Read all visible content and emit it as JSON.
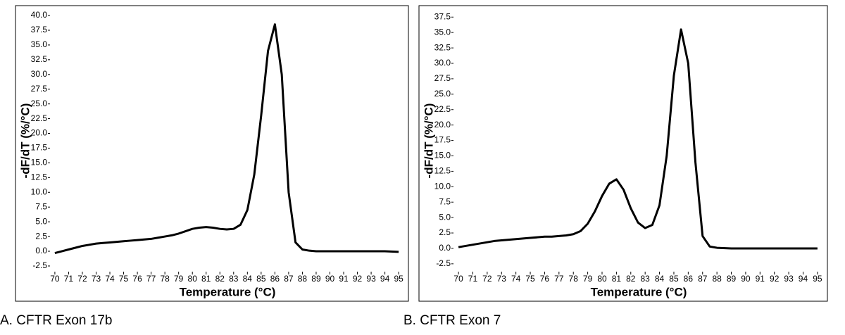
{
  "chart_data": [
    {
      "type": "line",
      "caption": "A. CFTR Exon 17b",
      "xlabel": "Temperature (°C)",
      "ylabel": "-dF/dT (%/°C)",
      "color": "#000000",
      "x": [
        70,
        70.5,
        71,
        71.5,
        72,
        72.5,
        73,
        73.5,
        74,
        74.5,
        75,
        75.5,
        76,
        76.5,
        77,
        77.5,
        78,
        78.5,
        79,
        79.5,
        80,
        80.5,
        81,
        81.5,
        82,
        82.5,
        83,
        83.5,
        84,
        84.5,
        85,
        85.5,
        86,
        86.5,
        87,
        87.5,
        88,
        88.5,
        89,
        90,
        91,
        92,
        93,
        94,
        95
      ],
      "values": [
        -0.3,
        0,
        0.3,
        0.6,
        0.9,
        1.1,
        1.3,
        1.4,
        1.5,
        1.6,
        1.7,
        1.8,
        1.9,
        2.0,
        2.1,
        2.3,
        2.5,
        2.7,
        3.0,
        3.4,
        3.8,
        4.0,
        4.1,
        4.0,
        3.8,
        3.7,
        3.8,
        4.5,
        7,
        13,
        23,
        34,
        38.5,
        30,
        10,
        1.5,
        0.3,
        0.1,
        0,
        0,
        0,
        0,
        0,
        0,
        -0.1
      ],
      "xlim": [
        69.8,
        95.3
      ],
      "ylim": [
        -3.7,
        41.2
      ],
      "xticks": [
        70,
        71,
        72,
        73,
        74,
        75,
        76,
        77,
        78,
        79,
        80,
        81,
        82,
        83,
        84,
        85,
        86,
        87,
        88,
        89,
        90,
        91,
        92,
        93,
        94,
        95
      ],
      "yticks": [
        -2.5,
        {
          "value": 0,
          "label": "0.0"
        },
        2.5,
        {
          "value": 5,
          "label": "5.0"
        },
        7.5,
        {
          "value": 10,
          "label": "10.0"
        },
        12.5,
        {
          "value": 15,
          "label": "15.0"
        },
        17.5,
        {
          "value": 20,
          "label": "20.0"
        },
        22.5,
        {
          "value": 25,
          "label": "25.0"
        },
        27.5,
        {
          "value": 30,
          "label": "30.0"
        },
        32.5,
        {
          "value": 35,
          "label": "35.0"
        },
        37.5,
        {
          "value": 40,
          "label": "40.0"
        }
      ]
    },
    {
      "type": "line",
      "caption": "B. CFTR Exon 7",
      "xlabel": "Temperature (°C)",
      "ylabel": "-dF/dT (%/°C)",
      "color": "#000000",
      "x": [
        70,
        70.5,
        71,
        71.5,
        72,
        72.5,
        73,
        73.5,
        74,
        74.5,
        75,
        75.5,
        76,
        76.5,
        77,
        77.5,
        78,
        78.5,
        79,
        79.5,
        80,
        80.5,
        81,
        81.5,
        82,
        82.5,
        83,
        83.5,
        84,
        84.5,
        85,
        85.5,
        86,
        86.5,
        87,
        87.5,
        88,
        89,
        90,
        91,
        92,
        93,
        94,
        95
      ],
      "values": [
        0.2,
        0.4,
        0.6,
        0.8,
        1.0,
        1.2,
        1.3,
        1.4,
        1.5,
        1.6,
        1.7,
        1.8,
        1.9,
        1.9,
        2.0,
        2.1,
        2.3,
        2.8,
        4,
        6,
        8.5,
        10.5,
        11.2,
        9.5,
        6.5,
        4.2,
        3.3,
        3.8,
        7,
        15,
        28,
        35.5,
        30,
        14,
        2,
        0.3,
        0.1,
        0,
        0,
        0,
        0,
        0,
        0,
        0
      ],
      "xlim": [
        69.8,
        95.3
      ],
      "ylim": [
        -4.0,
        38.9
      ],
      "xticks": [
        70,
        71,
        72,
        73,
        74,
        75,
        76,
        77,
        78,
        79,
        80,
        81,
        82,
        83,
        84,
        85,
        86,
        87,
        88,
        89,
        90,
        91,
        92,
        93,
        94,
        95
      ],
      "yticks": [
        -2.5,
        {
          "value": 0,
          "label": "0.0"
        },
        2.5,
        {
          "value": 5,
          "label": "5.0"
        },
        7.5,
        {
          "value": 10,
          "label": "10.0"
        },
        12.5,
        {
          "value": 15,
          "label": "15.0"
        },
        17.5,
        {
          "value": 20,
          "label": "20.0"
        },
        22.5,
        {
          "value": 25,
          "label": "25.0"
        },
        27.5,
        {
          "value": 30,
          "label": "30.0"
        },
        32.5,
        {
          "value": 35,
          "label": "35.0"
        },
        37.5
      ]
    }
  ]
}
